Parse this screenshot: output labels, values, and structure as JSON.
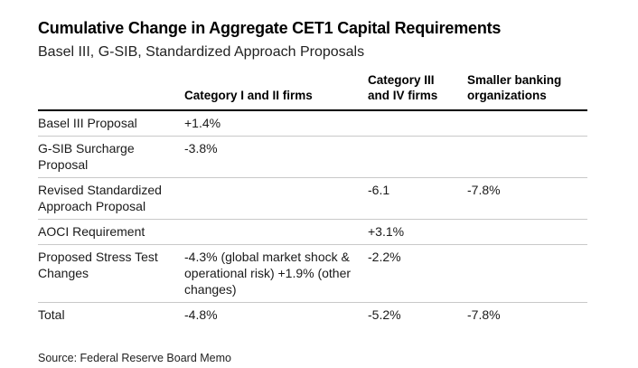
{
  "chart_data": {
    "type": "table",
    "title": "Cumulative Change in Aggregate CET1 Capital Requirements",
    "subtitle": "Basel III, G-SIB, Standardized Approach Proposals",
    "columns": [
      "",
      "Category I and II firms",
      "Category III and IV firms",
      "Smaller banking organizations"
    ],
    "rows": [
      [
        "Basel III Proposal",
        "+1.4%",
        "",
        ""
      ],
      [
        "G-SIB Surcharge Proposal",
        "-3.8%",
        "",
        ""
      ],
      [
        "Revised Standardized Approach Proposal",
        "",
        "-6.1",
        "-7.8%"
      ],
      [
        "AOCI Requirement",
        "",
        "+3.1%",
        ""
      ],
      [
        "Proposed Stress Test Changes",
        "-4.3% (global market shock & operational risk) +1.9% (other changes)",
        "-2.2%",
        ""
      ],
      [
        "Total",
        "-4.8%",
        "-5.2%",
        "-7.8%"
      ]
    ],
    "source": "Source: Federal Reserve Board Memo",
    "layout": {
      "grid": "horizontal-row-separators",
      "header_rule_color": "#000000",
      "row_separator_color": "#c9c9c9",
      "text_color": "#1a1a1a",
      "background": "#ffffff"
    }
  }
}
